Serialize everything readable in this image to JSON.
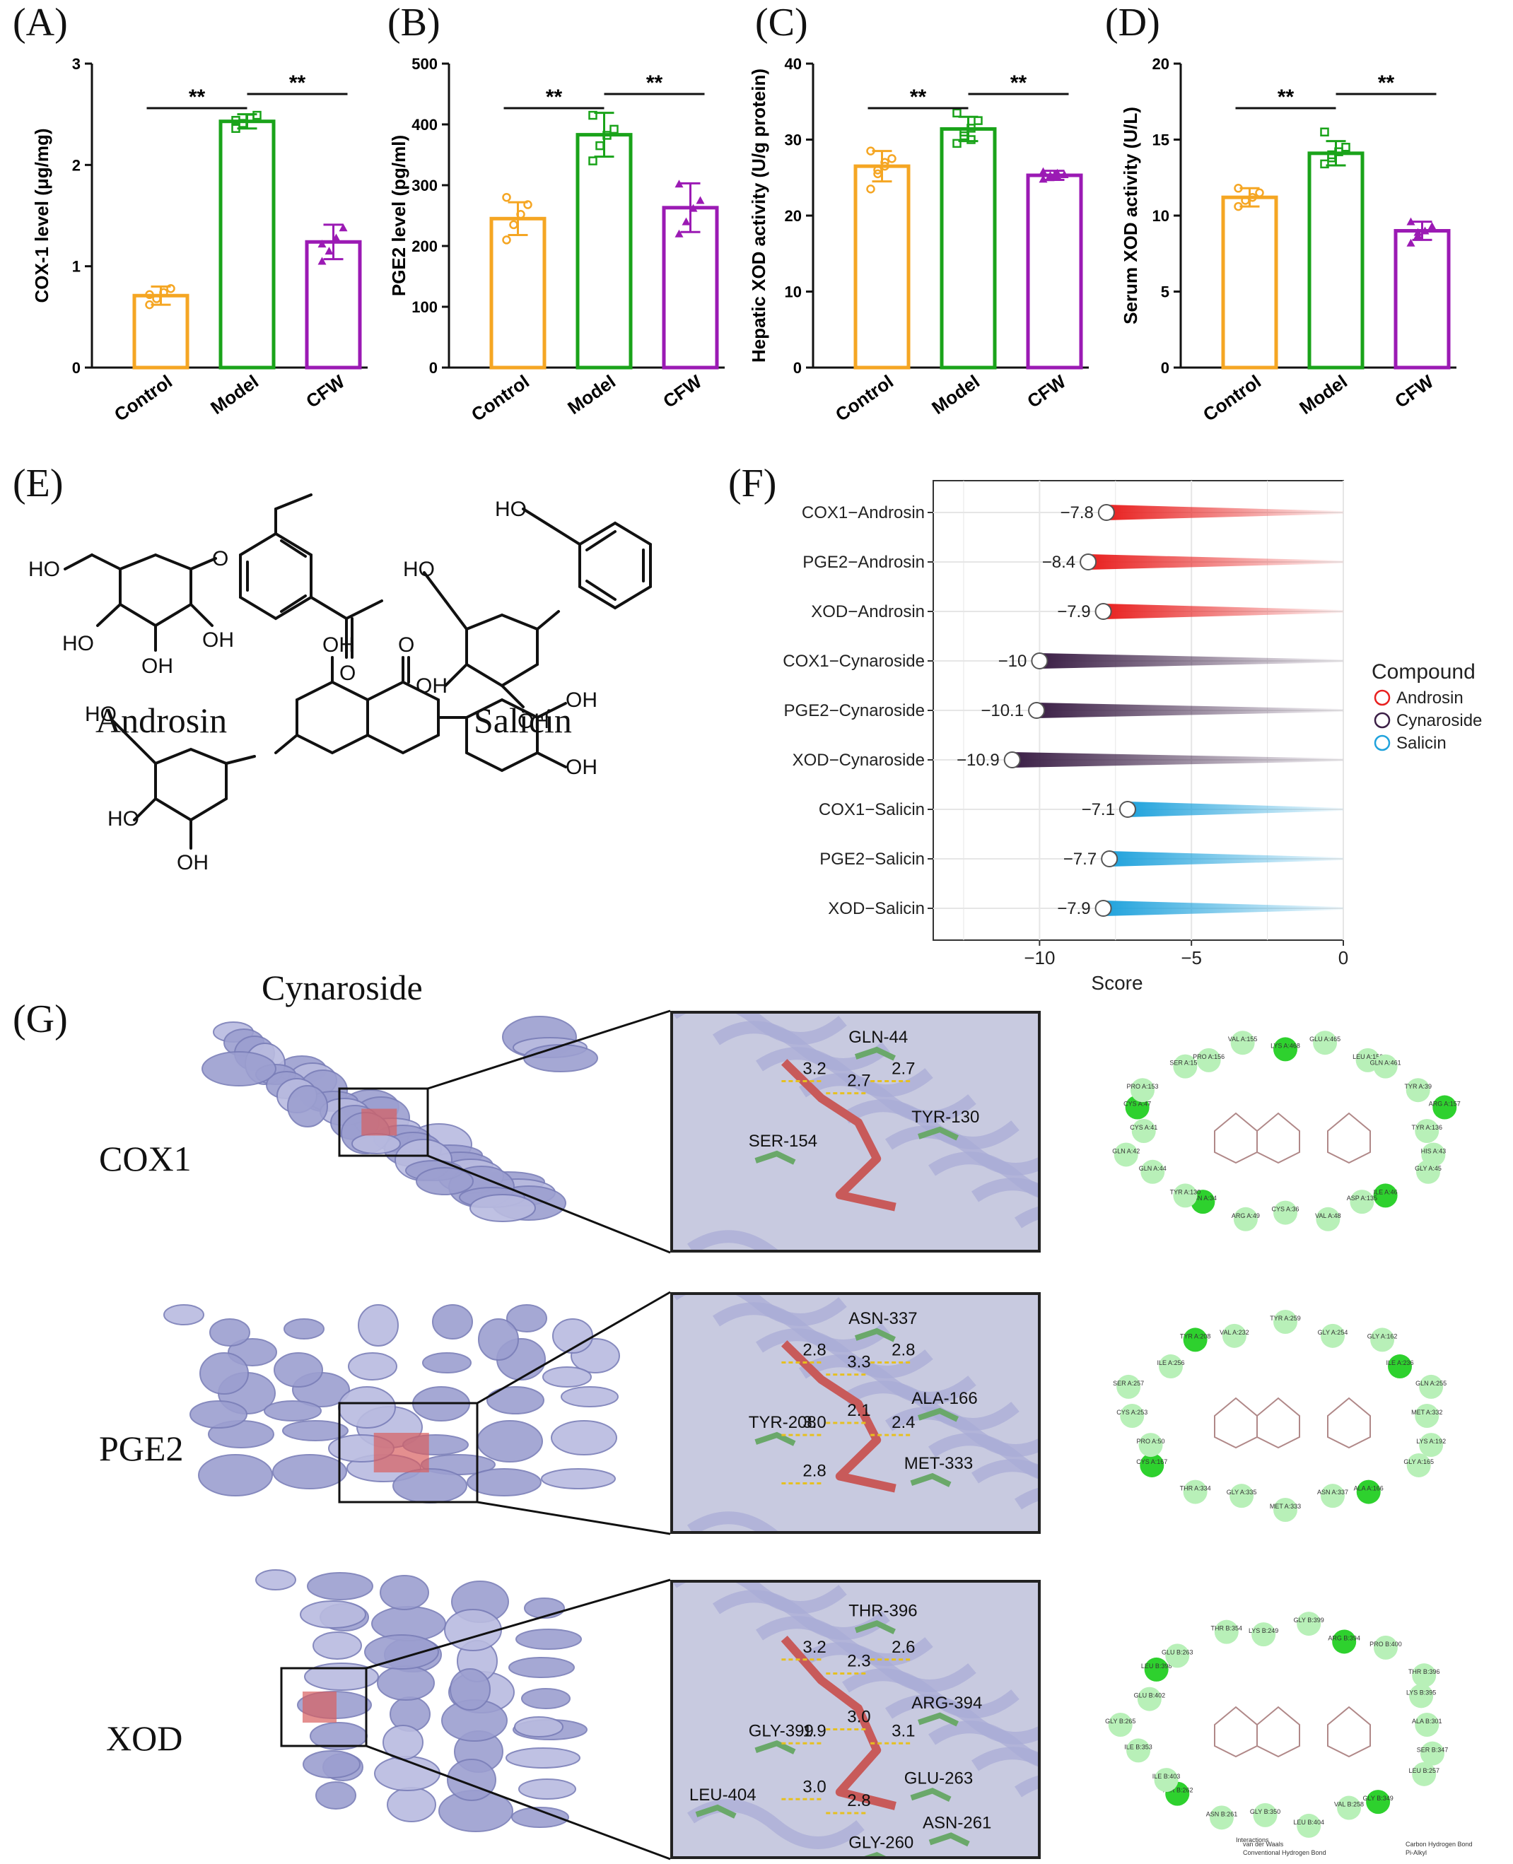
{
  "panels": {
    "A": "(A)",
    "B": "(B)",
    "C": "(C)",
    "D": "(D)",
    "E": "(E)",
    "F": "(F)",
    "G": "(G)"
  },
  "chart_data": [
    {
      "type": "bar",
      "panel": "A",
      "ylabel": "COX-1 level (μg/mg)",
      "categories": [
        "Control",
        "Model",
        "CFW"
      ],
      "values": [
        0.71,
        2.43,
        1.24
      ],
      "errors": [
        0.09,
        0.07,
        0.17
      ],
      "points": [
        [
          0.62,
          0.68,
          0.74,
          0.78,
          0.72
        ],
        [
          2.36,
          2.41,
          2.46,
          2.49,
          2.44
        ],
        [
          1.05,
          1.15,
          1.28,
          1.38,
          1.22
        ]
      ],
      "colors": [
        "#f5a623",
        "#1aa31a",
        "#9b1ab4"
      ],
      "ylim": [
        0,
        3
      ],
      "yticks": [
        0,
        1,
        2,
        3
      ],
      "significance": [
        "**",
        "**"
      ]
    },
    {
      "type": "bar",
      "panel": "B",
      "ylabel": "PGE2 level (pg/ml)",
      "categories": [
        "Control",
        "Model",
        "CFW"
      ],
      "values": [
        245,
        383,
        263
      ],
      "errors": [
        27,
        36,
        40
      ],
      "points": [
        [
          210,
          235,
          252,
          268,
          280
        ],
        [
          340,
          365,
          382,
          392,
          415
        ],
        [
          220,
          240,
          262,
          275,
          302
        ]
      ],
      "colors": [
        "#f5a623",
        "#1aa31a",
        "#9b1ab4"
      ],
      "ylim": [
        0,
        500
      ],
      "yticks": [
        0,
        100,
        200,
        300,
        400,
        500
      ],
      "significance": [
        "**",
        "**"
      ]
    },
    {
      "type": "bar",
      "panel": "C",
      "ylabel": "Hepatic XOD activity (U/g protein)",
      "categories": [
        "Control",
        "Model",
        "CFW"
      ],
      "values": [
        26.5,
        31.4,
        25.3
      ],
      "errors": [
        2.0,
        1.6,
        0.6
      ],
      "points": [
        [
          23.5,
          25.5,
          26.5,
          27.5,
          28.5,
          26.0,
          27.0
        ],
        [
          29.5,
          30.5,
          31.5,
          32.5,
          33.5,
          31.0,
          30.0
        ],
        [
          24.8,
          25.0,
          25.2,
          25.4,
          25.8,
          25.3,
          25.6
        ]
      ],
      "colors": [
        "#f5a623",
        "#1aa31a",
        "#9b1ab4"
      ],
      "ylim": [
        0,
        40
      ],
      "yticks": [
        0,
        10,
        20,
        30,
        40
      ],
      "significance": [
        "**",
        "**"
      ]
    },
    {
      "type": "bar",
      "panel": "D",
      "ylabel": "Serum XOD activity (U/L)",
      "categories": [
        "Control",
        "Model",
        "CFW"
      ],
      "values": [
        11.2,
        14.1,
        9.0
      ],
      "errors": [
        0.6,
        0.8,
        0.6
      ],
      "points": [
        [
          10.6,
          11.0,
          11.2,
          11.5,
          11.8
        ],
        [
          13.4,
          13.8,
          14.2,
          14.5,
          15.5,
          14.0
        ],
        [
          8.2,
          8.7,
          9.0,
          9.3,
          9.6,
          8.9
        ]
      ],
      "colors": [
        "#f5a623",
        "#1aa31a",
        "#9b1ab4"
      ],
      "ylim": [
        0,
        20
      ],
      "yticks": [
        0,
        5,
        10,
        15,
        20
      ],
      "significance": [
        "**",
        "**"
      ]
    },
    {
      "type": "lollipop",
      "panel": "F",
      "xlabel": "Score",
      "xlim": [
        -13.5,
        0
      ],
      "xticks": [
        -10,
        -5,
        0
      ],
      "legend_title": "Compound",
      "legend_position": "right",
      "series": [
        {
          "name": "Androsin",
          "color": "#e8201f"
        },
        {
          "name": "Cynaroside",
          "color": "#3b1f46"
        },
        {
          "name": "Salicin",
          "color": "#1fa2dc"
        }
      ],
      "rows": [
        {
          "label": "COX1−Androsin",
          "value": -7.8,
          "value_label": "−7.8",
          "series": 0
        },
        {
          "label": "PGE2−Androsin",
          "value": -8.4,
          "value_label": "−8.4",
          "series": 0
        },
        {
          "label": "XOD−Androsin",
          "value": -7.9,
          "value_label": "−7.9",
          "series": 0
        },
        {
          "label": "COX1−Cynaroside",
          "value": -10,
          "value_label": "−10",
          "series": 1
        },
        {
          "label": "PGE2−Cynaroside",
          "value": -10.1,
          "value_label": "−10.1",
          "series": 1
        },
        {
          "label": "XOD−Cynaroside",
          "value": -10.9,
          "value_label": "−10.9",
          "series": 1
        },
        {
          "label": "COX1−Salicin",
          "value": -7.1,
          "value_label": "−7.1",
          "series": 2
        },
        {
          "label": "PGE2−Salicin",
          "value": -7.7,
          "value_label": "−7.7",
          "series": 2
        },
        {
          "label": "XOD−Salicin",
          "value": -7.9,
          "value_label": "−7.9",
          "series": 2
        }
      ]
    }
  ],
  "compounds": {
    "androsin": "Androsin",
    "salicin": "Salicin",
    "cynaroside": "Cynaroside"
  },
  "chem_labels": {
    "ho": "HO",
    "oh": "OH",
    "o": "O"
  },
  "proteins": [
    {
      "name": "COX1",
      "residues": [
        "GLN-44",
        "TYR-130",
        "SER-154"
      ],
      "distances": [
        "3.2",
        "2.7",
        "2.7"
      ],
      "map_residues": [
        "TYR A:136",
        "HIS A:43",
        "GLY A:45",
        "ILE A:46",
        "ASP A:135",
        "VAL A:48",
        "CYS A:36",
        "ARG A:49",
        "ASN A:34",
        "TYR A:130",
        "GLN A:44",
        "GLN A:42",
        "CYS A:41",
        "CYS A:47",
        "PRO A:153",
        "SER A:154",
        "PRO A:156",
        "VAL A:155",
        "LYS A:468",
        "GLU A:465",
        "LEU A:152",
        "GLN A:461",
        "TYR A:39",
        "ARG A:157"
      ]
    },
    {
      "name": "PGE2",
      "residues": [
        "ASN-337",
        "ALA-166",
        "TYR-208",
        "MET-333"
      ],
      "distances": [
        "2.8",
        "3.3",
        "2.8",
        "3.0",
        "2.1",
        "2.4",
        "2.8"
      ],
      "map_residues": [
        "MET A:332",
        "LYS A:192",
        "GLY A:165",
        "ALA A:166",
        "ASN A:337",
        "MET A:333",
        "GLY A:335",
        "THR A:334",
        "CYS A:167",
        "PRO A:50",
        "CYS A:253",
        "SER A:257",
        "ILE A:256",
        "TYR A:208",
        "VAL A:232",
        "TYR A:259",
        "GLY A:254",
        "GLY A:162",
        "ILE A:236",
        "GLN A:255"
      ]
    },
    {
      "name": "XOD",
      "residues": [
        "THR-396",
        "ARG-394",
        "GLY-399",
        "GLU-263",
        "LEU-404",
        "ASN-261",
        "GLY-260"
      ],
      "distances": [
        "3.2",
        "2.3",
        "2.6",
        "1.9",
        "3.0",
        "3.1",
        "3.0",
        "2.8"
      ],
      "map_residues": [
        "ALA B:301",
        "SER B:347",
        "LEU B:257",
        "GLY B:349",
        "VAL B:258",
        "LEU B:404",
        "GLY B:350",
        "ASN B:261",
        "THR B:262",
        "ILE B:403",
        "ILE B:353",
        "GLY B:265",
        "GLU B:402",
        "LEU B:398",
        "GLU B:263",
        "THR B:354",
        "LYS B:249",
        "GLY B:399",
        "ARG B:394",
        "PRO B:400",
        "THR B:396",
        "LYS B:395"
      ],
      "map_legend": [
        "Interactions",
        "van der Waals",
        "Conventional Hydrogen Bond",
        "Carbon Hydrogen Bond",
        "Pi-Alkyl"
      ]
    }
  ]
}
